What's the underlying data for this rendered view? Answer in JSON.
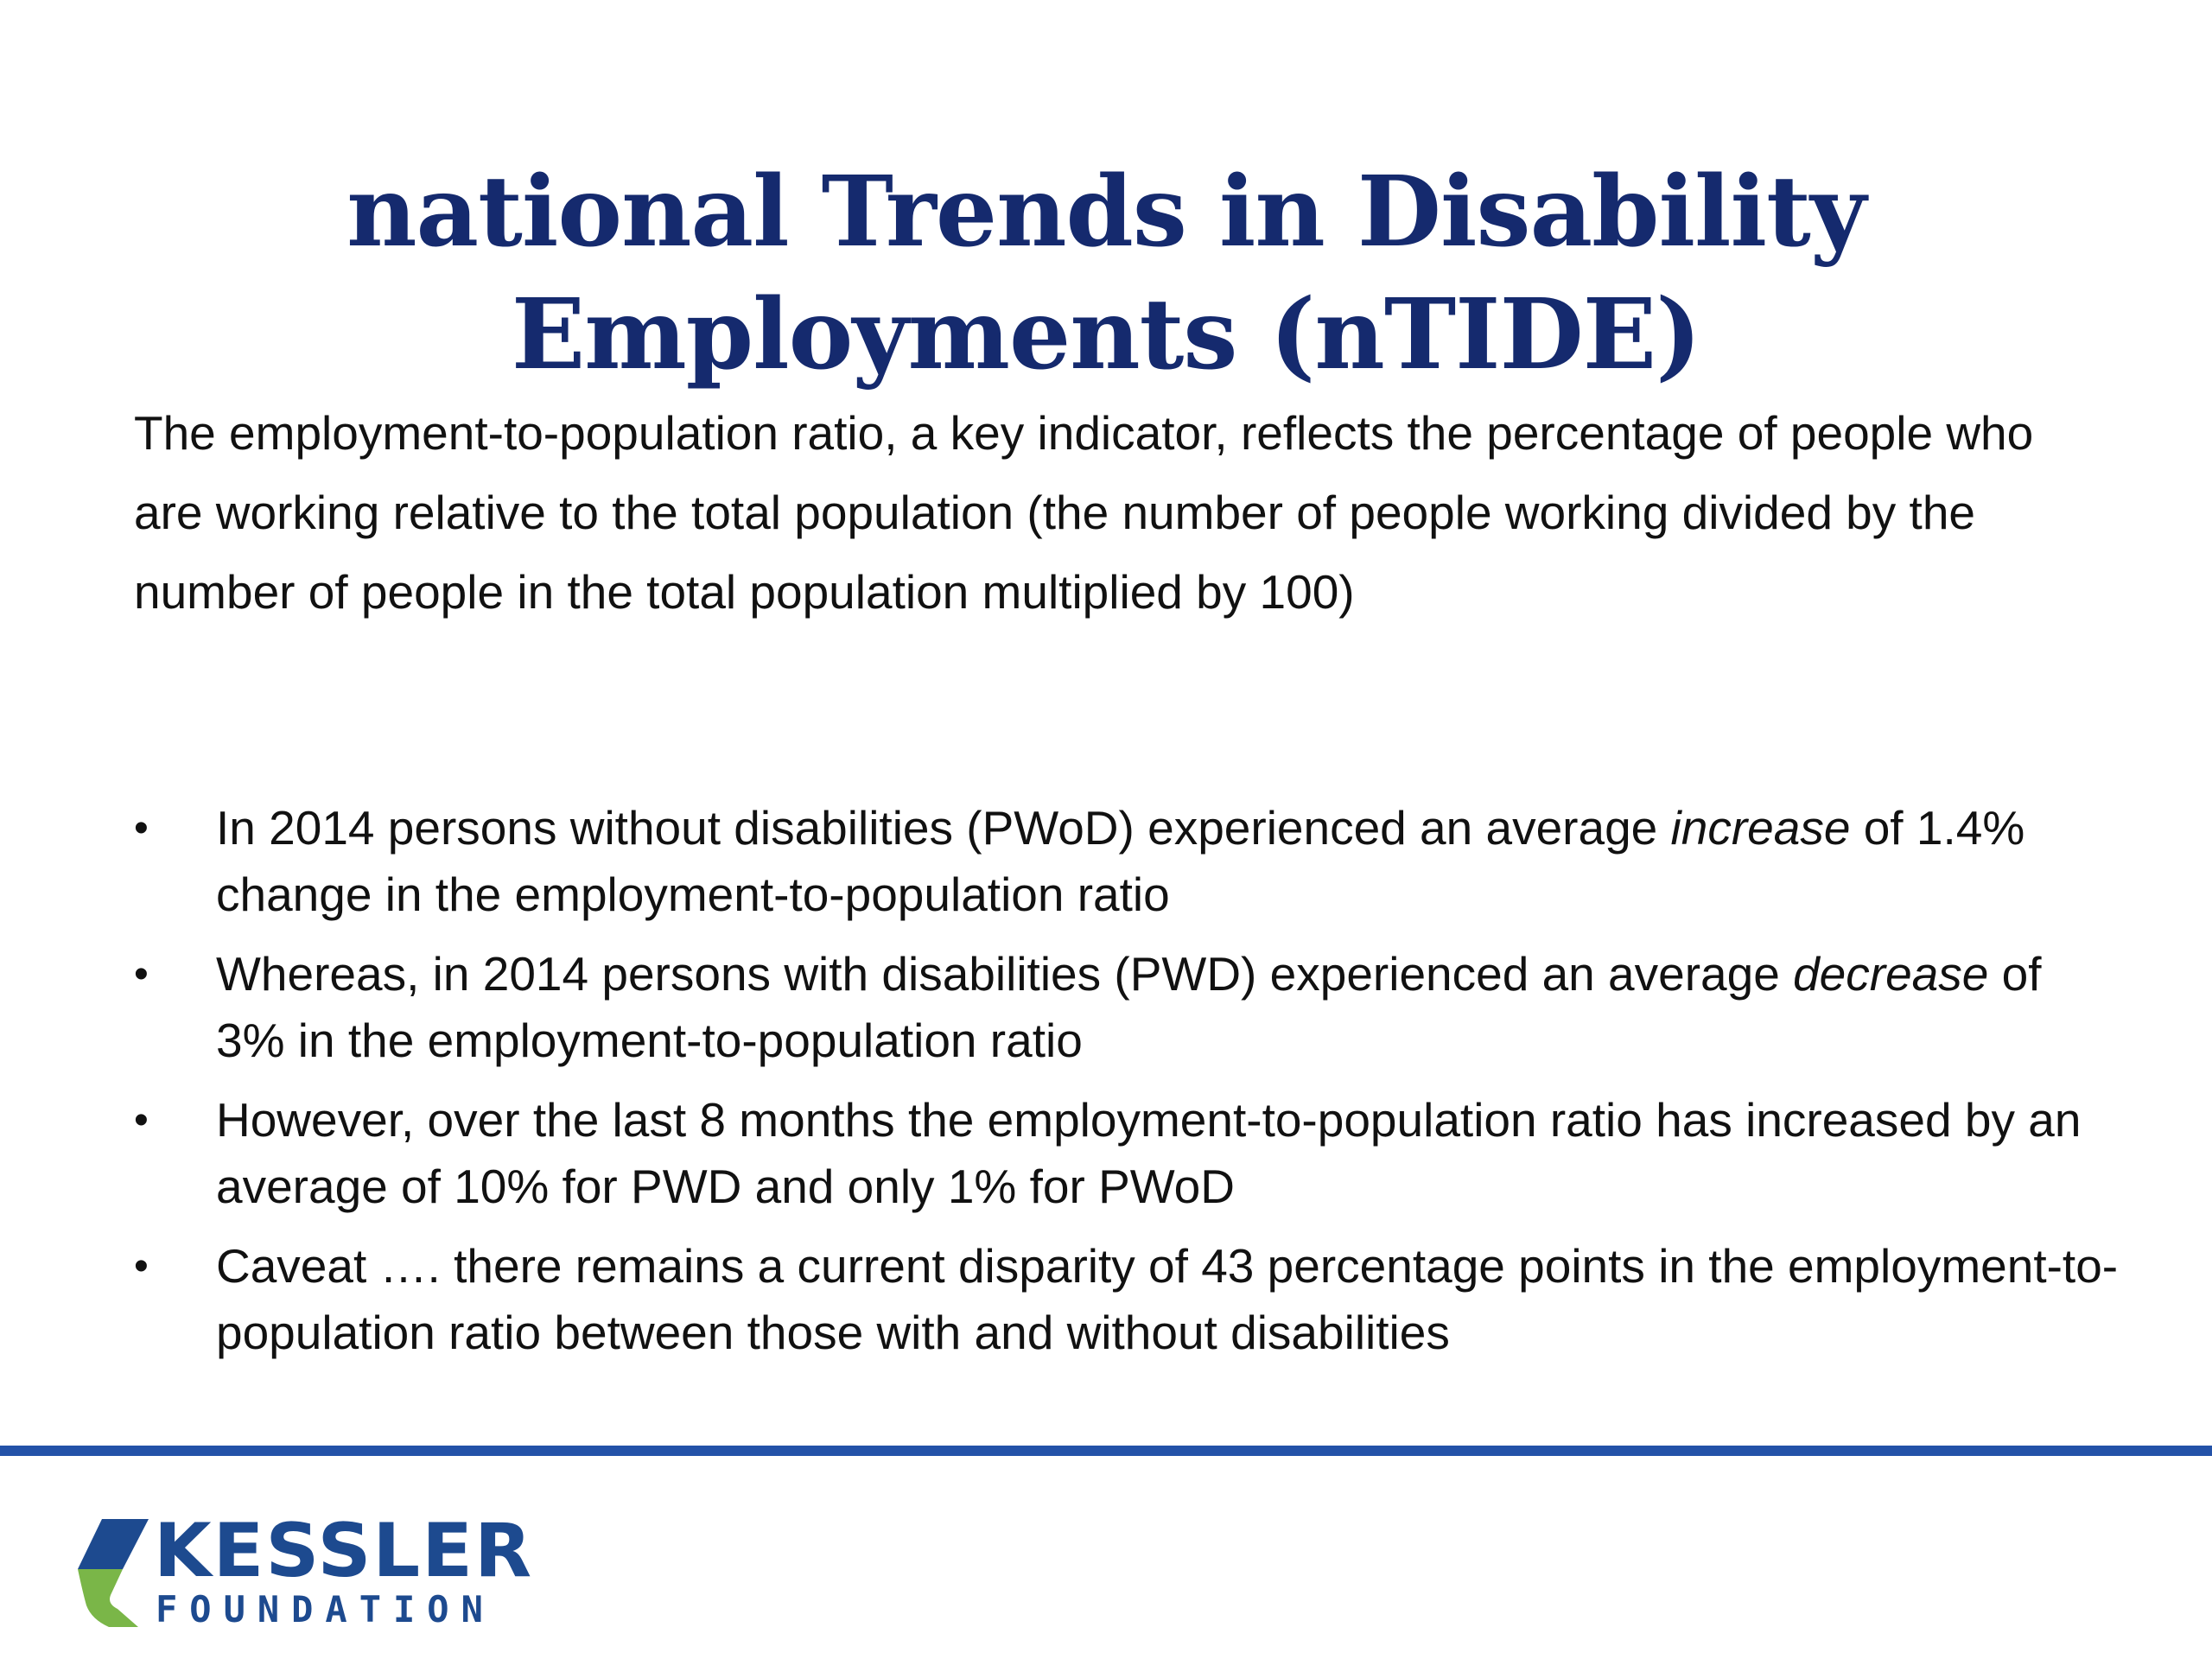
{
  "title": {
    "line1": "national Trends in Disability",
    "line2": "Employments (nTIDE)"
  },
  "intro": "The employment-to-population ratio, a key indicator, reflects the percentage of people who are working relative to the total population (the number of people working divided by the number of people in the total population multiplied by 100)",
  "bullets": [
    {
      "before": "In 2014 persons without disabilities (PWoD) experienced an average ",
      "emphasis": "increase",
      "after": " of 1.4% change in the employment-to-population ratio"
    },
    {
      "before": "Whereas, in 2014 persons with disabilities (PWD) experienced an average ",
      "emphasis": "decrease",
      "after": " of 3% in the employment-to-population ratio"
    },
    {
      "before": "However, over the last 8 months the employment-to-population ratio has increased by an average of 10% for PWD and only 1% for PWoD",
      "emphasis": "",
      "after": ""
    },
    {
      "before": "Caveat …. there remains a current disparity of 43 percentage points in the employment-to-population ratio between those with and without disabilities",
      "emphasis": "",
      "after": ""
    }
  ],
  "bullet_symbol": "•",
  "logo": {
    "name": "KESSLER",
    "sub": "FOUNDATION"
  },
  "colors": {
    "title": "#152a6e",
    "rule": "#2352a8",
    "logo_blue": "#1d4a8f",
    "logo_green": "#7ab648"
  }
}
